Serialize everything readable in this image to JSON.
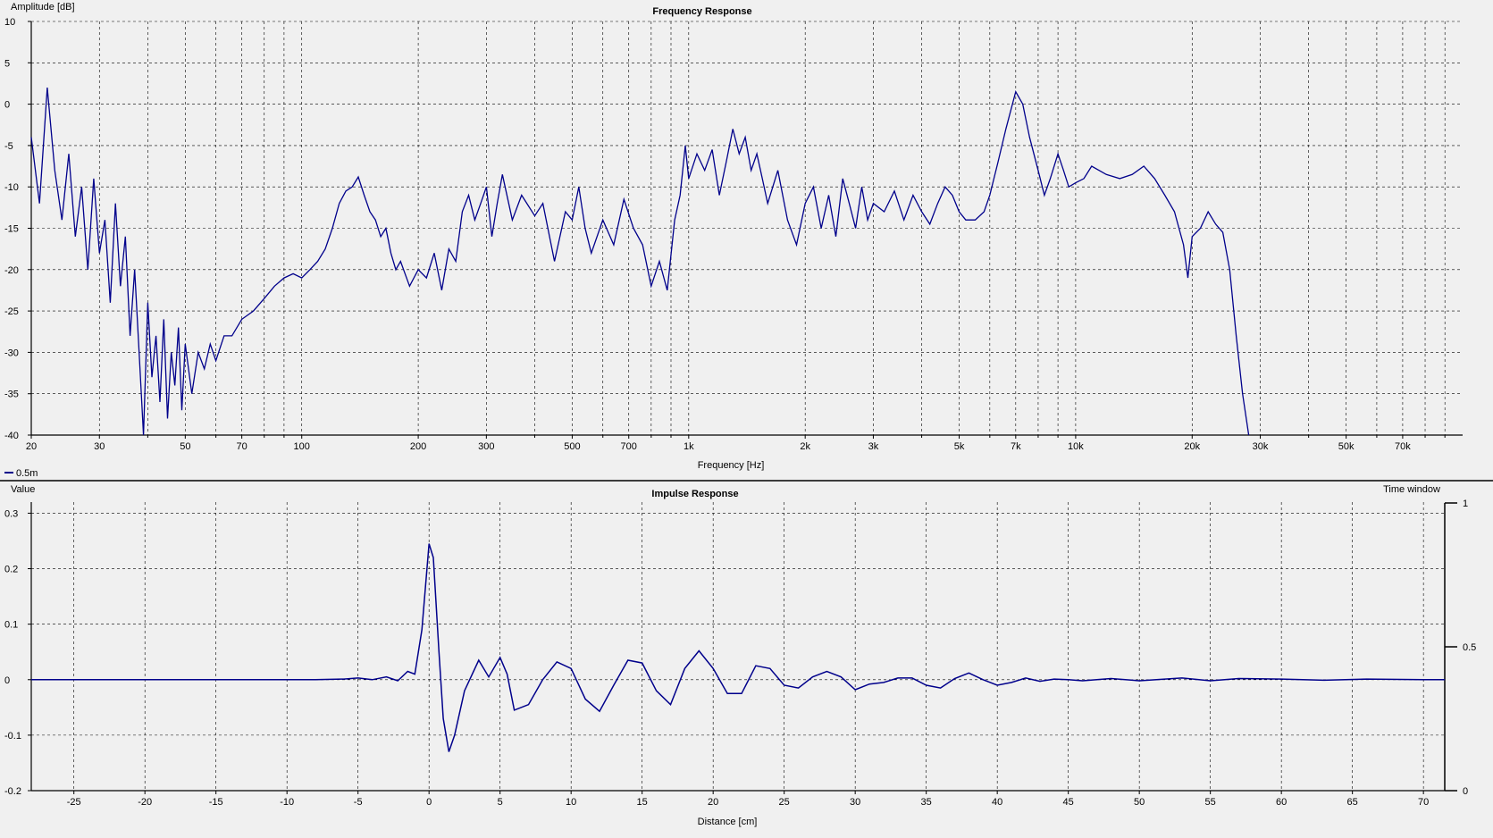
{
  "freq_panel": {
    "title": "Frequency Response",
    "y_label": "Amplitude [dB]",
    "x_label": "Frequency [Hz]",
    "legend_label": "0.5m"
  },
  "impulse_panel": {
    "title": "Impulse Response",
    "y_label": "Value",
    "x_label": "Distance [cm]",
    "right_label": "Time window"
  },
  "colors": {
    "background": "#f0f0f0",
    "curve": "#00008b",
    "grid": "#000000",
    "axis": "#000000"
  },
  "chart_data": [
    {
      "type": "line",
      "title": "Frequency Response",
      "xlabel": "Frequency [Hz]",
      "ylabel": "Amplitude [dB]",
      "x_scale": "log",
      "xlim": [
        20,
        100000
      ],
      "ylim": [
        -40,
        10
      ],
      "grid": true,
      "legend": "bottom-left",
      "x_ticks": [
        {
          "v": 20,
          "t": "20"
        },
        {
          "v": 30,
          "t": "30"
        },
        {
          "v": 50,
          "t": "50"
        },
        {
          "v": 70,
          "t": "70"
        },
        {
          "v": 100,
          "t": "100"
        },
        {
          "v": 200,
          "t": "200"
        },
        {
          "v": 300,
          "t": "300"
        },
        {
          "v": 500,
          "t": "500"
        },
        {
          "v": 700,
          "t": "700"
        },
        {
          "v": 1000,
          "t": "1k"
        },
        {
          "v": 2000,
          "t": "2k"
        },
        {
          "v": 3000,
          "t": "3k"
        },
        {
          "v": 5000,
          "t": "5k"
        },
        {
          "v": 7000,
          "t": "7k"
        },
        {
          "v": 10000,
          "t": "10k"
        },
        {
          "v": 20000,
          "t": "20k"
        },
        {
          "v": 30000,
          "t": "30k"
        },
        {
          "v": 50000,
          "t": "50k"
        },
        {
          "v": 70000,
          "t": "70k"
        }
      ],
      "x_minor_grid": [
        40,
        60,
        80,
        90,
        400,
        600,
        800,
        900,
        4000,
        6000,
        8000,
        9000,
        40000,
        60000,
        80000,
        90000
      ],
      "y_ticks": [
        10,
        5,
        0,
        -5,
        -10,
        -15,
        -20,
        -25,
        -30,
        -35,
        -40
      ],
      "series": [
        {
          "name": "0.5m",
          "points": [
            [
              20,
              -4
            ],
            [
              21,
              -12
            ],
            [
              22,
              2
            ],
            [
              23,
              -8
            ],
            [
              24,
              -14
            ],
            [
              25,
              -6
            ],
            [
              26,
              -16
            ],
            [
              27,
              -10
            ],
            [
              28,
              -20
            ],
            [
              29,
              -9
            ],
            [
              30,
              -18
            ],
            [
              31,
              -14
            ],
            [
              32,
              -24
            ],
            [
              33,
              -12
            ],
            [
              34,
              -22
            ],
            [
              35,
              -16
            ],
            [
              36,
              -28
            ],
            [
              37,
              -20
            ],
            [
              38,
              -30
            ],
            [
              39,
              -40
            ],
            [
              40,
              -24
            ],
            [
              41,
              -33
            ],
            [
              42,
              -28
            ],
            [
              43,
              -36
            ],
            [
              44,
              -26
            ],
            [
              45,
              -38
            ],
            [
              46,
              -30
            ],
            [
              47,
              -34
            ],
            [
              48,
              -27
            ],
            [
              49,
              -37
            ],
            [
              50,
              -29
            ],
            [
              52,
              -35
            ],
            [
              54,
              -30
            ],
            [
              56,
              -32
            ],
            [
              58,
              -29
            ],
            [
              60,
              -31
            ],
            [
              63,
              -28
            ],
            [
              66,
              -28
            ],
            [
              70,
              -26
            ],
            [
              75,
              -25
            ],
            [
              80,
              -23.5
            ],
            [
              85,
              -22
            ],
            [
              90,
              -21
            ],
            [
              95,
              -20.5
            ],
            [
              100,
              -21
            ],
            [
              105,
              -20
            ],
            [
              110,
              -19
            ],
            [
              115,
              -17.5
            ],
            [
              120,
              -15
            ],
            [
              125,
              -12
            ],
            [
              130,
              -10.5
            ],
            [
              135,
              -10
            ],
            [
              140,
              -8.8
            ],
            [
              145,
              -11
            ],
            [
              150,
              -13
            ],
            [
              155,
              -14
            ],
            [
              160,
              -16
            ],
            [
              165,
              -15
            ],
            [
              170,
              -18
            ],
            [
              175,
              -20
            ],
            [
              180,
              -19
            ],
            [
              190,
              -22
            ],
            [
              200,
              -20
            ],
            [
              210,
              -21
            ],
            [
              220,
              -18
            ],
            [
              230,
              -22.5
            ],
            [
              240,
              -17.5
            ],
            [
              250,
              -19
            ],
            [
              260,
              -13
            ],
            [
              270,
              -11
            ],
            [
              280,
              -14
            ],
            [
              290,
              -12
            ],
            [
              300,
              -10
            ],
            [
              310,
              -16
            ],
            [
              320,
              -12
            ],
            [
              330,
              -8.5
            ],
            [
              350,
              -14
            ],
            [
              370,
              -11
            ],
            [
              400,
              -13.5
            ],
            [
              420,
              -12
            ],
            [
              450,
              -19
            ],
            [
              480,
              -13
            ],
            [
              500,
              -14
            ],
            [
              520,
              -10
            ],
            [
              540,
              -15
            ],
            [
              560,
              -18
            ],
            [
              600,
              -14
            ],
            [
              640,
              -17
            ],
            [
              680,
              -11.5
            ],
            [
              720,
              -15
            ],
            [
              760,
              -17
            ],
            [
              800,
              -22
            ],
            [
              840,
              -19
            ],
            [
              880,
              -22.5
            ],
            [
              920,
              -14
            ],
            [
              950,
              -11
            ],
            [
              980,
              -5
            ],
            [
              1000,
              -9
            ],
            [
              1050,
              -6
            ],
            [
              1100,
              -8
            ],
            [
              1150,
              -5.5
            ],
            [
              1200,
              -11
            ],
            [
              1250,
              -7
            ],
            [
              1300,
              -3
            ],
            [
              1350,
              -6
            ],
            [
              1400,
              -4
            ],
            [
              1450,
              -8
            ],
            [
              1500,
              -6
            ],
            [
              1550,
              -9
            ],
            [
              1600,
              -12
            ],
            [
              1700,
              -8
            ],
            [
              1800,
              -14
            ],
            [
              1900,
              -17
            ],
            [
              2000,
              -12
            ],
            [
              2100,
              -10
            ],
            [
              2200,
              -15
            ],
            [
              2300,
              -11
            ],
            [
              2400,
              -16
            ],
            [
              2500,
              -9
            ],
            [
              2600,
              -12
            ],
            [
              2700,
              -15
            ],
            [
              2800,
              -10
            ],
            [
              2900,
              -14
            ],
            [
              3000,
              -12
            ],
            [
              3200,
              -13
            ],
            [
              3400,
              -10.5
            ],
            [
              3600,
              -14
            ],
            [
              3800,
              -11
            ],
            [
              4000,
              -13
            ],
            [
              4200,
              -14.5
            ],
            [
              4400,
              -12
            ],
            [
              4600,
              -10
            ],
            [
              4800,
              -11
            ],
            [
              5000,
              -13
            ],
            [
              5200,
              -14
            ],
            [
              5500,
              -14
            ],
            [
              5800,
              -13
            ],
            [
              6000,
              -11
            ],
            [
              6300,
              -7
            ],
            [
              6600,
              -3
            ],
            [
              7000,
              1.5
            ],
            [
              7300,
              0
            ],
            [
              7600,
              -4
            ],
            [
              8000,
              -8
            ],
            [
              8300,
              -11
            ],
            [
              8600,
              -9
            ],
            [
              9000,
              -6
            ],
            [
              9300,
              -8
            ],
            [
              9600,
              -10
            ],
            [
              10000,
              -9.5
            ],
            [
              10500,
              -9
            ],
            [
              11000,
              -7.5
            ],
            [
              12000,
              -8.5
            ],
            [
              13000,
              -9
            ],
            [
              14000,
              -8.5
            ],
            [
              15000,
              -7.5
            ],
            [
              16000,
              -9
            ],
            [
              17000,
              -11
            ],
            [
              18000,
              -13
            ],
            [
              19000,
              -17
            ],
            [
              19500,
              -21
            ],
            [
              20000,
              -16
            ],
            [
              21000,
              -15
            ],
            [
              22000,
              -13
            ],
            [
              23000,
              -14.5
            ],
            [
              24000,
              -15.5
            ],
            [
              25000,
              -20
            ],
            [
              26000,
              -28
            ],
            [
              27000,
              -35
            ],
            [
              28000,
              -40
            ]
          ]
        }
      ]
    },
    {
      "type": "line",
      "title": "Impulse Response",
      "xlabel": "Distance [cm]",
      "ylabel": "Value",
      "xlim": [
        -28,
        71.5
      ],
      "ylim": [
        -0.2,
        0.32
      ],
      "grid": true,
      "x_ticks": [
        -25,
        -20,
        -15,
        -10,
        -5,
        0,
        5,
        10,
        15,
        20,
        25,
        30,
        35,
        40,
        45,
        50,
        55,
        60,
        65,
        70
      ],
      "y_ticks": [
        {
          "v": 0.3,
          "t": "0.3"
        },
        {
          "v": 0.2,
          "t": "0.2"
        },
        {
          "v": 0.1,
          "t": "0.1"
        },
        {
          "v": 0,
          "t": "0"
        },
        {
          "v": -0.1,
          "t": "-0.1"
        },
        {
          "v": -0.2,
          "t": "-0.2"
        }
      ],
      "right_axis": {
        "label": "Time window",
        "ticks": [
          {
            "v": 1,
            "t": "1"
          },
          {
            "v": 0.5,
            "t": "0.5"
          },
          {
            "v": 0,
            "t": "0"
          }
        ],
        "range": [
          0,
          1
        ]
      },
      "series": [
        {
          "points": [
            [
              -28,
              0
            ],
            [
              -8,
              0
            ],
            [
              -6,
              0.001
            ],
            [
              -5,
              0.003
            ],
            [
              -4,
              0
            ],
            [
              -3,
              0.005
            ],
            [
              -2.2,
              -0.002
            ],
            [
              -1.5,
              0.015
            ],
            [
              -1,
              0.01
            ],
            [
              -0.5,
              0.09
            ],
            [
              0,
              0.245
            ],
            [
              0.3,
              0.22
            ],
            [
              0.7,
              0.05
            ],
            [
              1,
              -0.07
            ],
            [
              1.4,
              -0.13
            ],
            [
              1.8,
              -0.1
            ],
            [
              2.5,
              -0.02
            ],
            [
              3.5,
              0.035
            ],
            [
              4.2,
              0.005
            ],
            [
              5,
              0.04
            ],
            [
              5.5,
              0.01
            ],
            [
              6,
              -0.055
            ],
            [
              7,
              -0.045
            ],
            [
              8,
              0
            ],
            [
              9,
              0.032
            ],
            [
              10,
              0.02
            ],
            [
              11,
              -0.035
            ],
            [
              12,
              -0.057
            ],
            [
              13,
              -0.01
            ],
            [
              14,
              0.035
            ],
            [
              15,
              0.03
            ],
            [
              16,
              -0.02
            ],
            [
              17,
              -0.045
            ],
            [
              18,
              0.02
            ],
            [
              19,
              0.052
            ],
            [
              20,
              0.02
            ],
            [
              21,
              -0.025
            ],
            [
              22,
              -0.025
            ],
            [
              23,
              0.025
            ],
            [
              24,
              0.02
            ],
            [
              25,
              -0.01
            ],
            [
              26,
              -0.015
            ],
            [
              27,
              0.005
            ],
            [
              28,
              0.015
            ],
            [
              29,
              0.005
            ],
            [
              30,
              -0.018
            ],
            [
              31,
              -0.008
            ],
            [
              32,
              -0.005
            ],
            [
              33,
              0.003
            ],
            [
              34,
              0.003
            ],
            [
              35,
              -0.01
            ],
            [
              36,
              -0.015
            ],
            [
              37,
              0.002
            ],
            [
              38,
              0.012
            ],
            [
              39,
              0
            ],
            [
              40,
              -0.01
            ],
            [
              41,
              -0.005
            ],
            [
              42,
              0.003
            ],
            [
              43,
              -0.003
            ],
            [
              44,
              0.001
            ],
            [
              45,
              0
            ],
            [
              46,
              -0.002
            ],
            [
              48,
              0.002
            ],
            [
              50,
              -0.002
            ],
            [
              53,
              0.003
            ],
            [
              55,
              -0.002
            ],
            [
              57,
              0.002
            ],
            [
              60,
              0.001
            ],
            [
              63,
              -0.001
            ],
            [
              66,
              0.001
            ],
            [
              70,
              0
            ],
            [
              71.5,
              0
            ]
          ]
        }
      ]
    }
  ]
}
